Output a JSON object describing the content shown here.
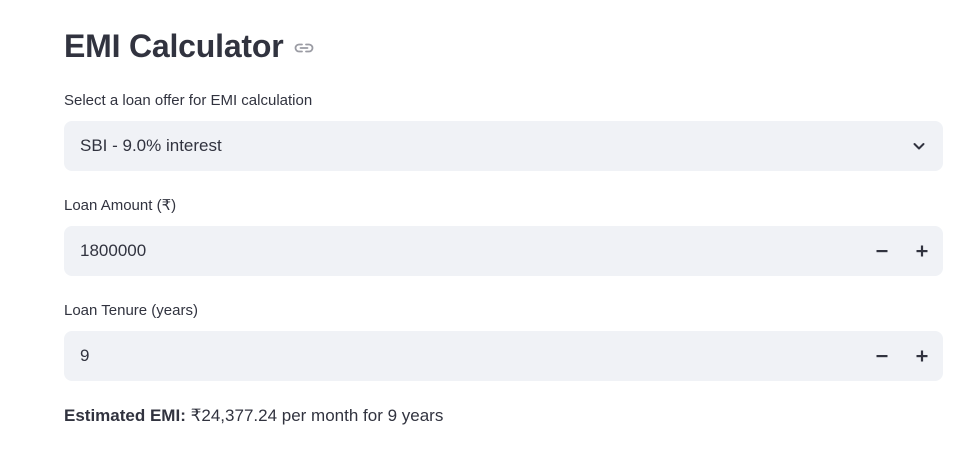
{
  "page": {
    "title": "EMI Calculator"
  },
  "loan_offer": {
    "label": "Select a loan offer for EMI calculation",
    "selected": "SBI - 9.0% interest"
  },
  "loan_amount": {
    "label": "Loan Amount (₹)",
    "value": "1800000"
  },
  "loan_tenure": {
    "label": "Loan Tenure (years)",
    "value": "9"
  },
  "result": {
    "label": "Estimated EMI:",
    "text": " ₹24,377.24 per month for 9 years"
  },
  "icons": {
    "anchor": "link-icon",
    "dropdown": "chevron-down-icon",
    "decrement": "minus-icon",
    "increment": "plus-icon"
  }
}
